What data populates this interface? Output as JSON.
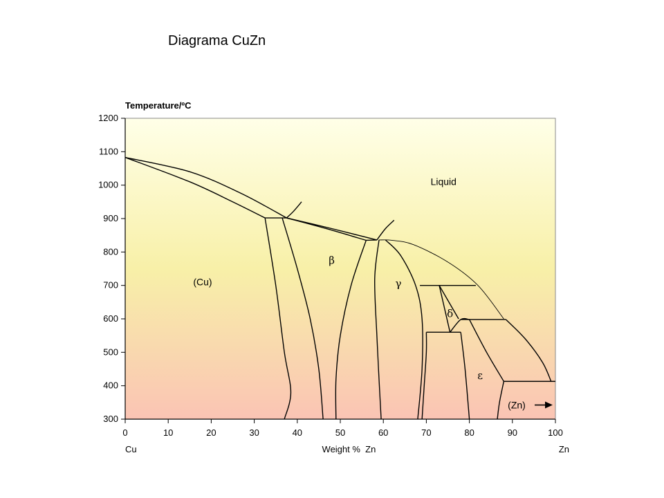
{
  "slide_title": "Diagrama CuZn",
  "chart_data": {
    "type": "phase_diagram",
    "y_axis_title": "Temperature/ºC",
    "x_axis_title": "Weight %  Zn",
    "x_left_label": "Cu",
    "x_right_label": "Zn",
    "xlim": [
      0,
      100
    ],
    "ylim": [
      300,
      1200
    ],
    "x_ticks": [
      0,
      10,
      20,
      30,
      40,
      50,
      60,
      70,
      80,
      90,
      100
    ],
    "y_ticks": [
      300,
      400,
      500,
      600,
      700,
      800,
      900,
      1000,
      1100,
      1200
    ],
    "background_gradient": [
      "#ffffe8",
      "#f8f0a8",
      "#fac4b4"
    ],
    "regions": [
      {
        "key": "liquid",
        "label": "Liquid",
        "x": 74,
        "y": 1000
      },
      {
        "key": "cu",
        "label": "(Cu)",
        "x": 18,
        "y": 700
      },
      {
        "key": "beta",
        "label": "β",
        "x": 48,
        "y": 765
      },
      {
        "key": "gamma",
        "label": "γ",
        "x": 63.5,
        "y": 695
      },
      {
        "key": "delta",
        "label": "δ",
        "x": 75.5,
        "y": 605
      },
      {
        "key": "epsilon",
        "label": "ε",
        "x": 82.5,
        "y": 420
      },
      {
        "key": "zn",
        "label": "(Zn)",
        "x": 91,
        "y": 332
      }
    ],
    "boundaries": [
      {
        "name": "liquidus-cu",
        "points": [
          [
            0,
            1083
          ],
          [
            15,
            1040
          ],
          [
            27,
            975
          ],
          [
            37.5,
            902
          ]
        ]
      },
      {
        "name": "solidus-cu",
        "points": [
          [
            0,
            1083
          ],
          [
            15,
            1010
          ],
          [
            25,
            950
          ],
          [
            32.5,
            902
          ]
        ]
      },
      {
        "name": "peritectic-beta-line",
        "points": [
          [
            32.5,
            902
          ],
          [
            37.5,
            902
          ]
        ]
      },
      {
        "name": "liquidus-beta-tail",
        "points": [
          [
            37.5,
            902
          ],
          [
            39,
            920
          ],
          [
            41,
            950
          ]
        ]
      },
      {
        "name": "liquidus-beta",
        "points": [
          [
            37.5,
            902
          ],
          [
            48,
            870
          ],
          [
            58.5,
            836
          ]
        ]
      },
      {
        "name": "solidus-beta",
        "points": [
          [
            37.5,
            902
          ],
          [
            47,
            869
          ],
          [
            56,
            835
          ]
        ]
      },
      {
        "name": "peritectic-gamma-line",
        "points": [
          [
            56,
            835
          ],
          [
            58.5,
            836
          ]
        ]
      },
      {
        "name": "liquidus-gamma-tail",
        "points": [
          [
            58.5,
            836
          ],
          [
            60.5,
            870
          ],
          [
            62.5,
            895
          ]
        ]
      },
      {
        "name": "liquidus-gamma",
        "points": [
          [
            59,
            836
          ],
          [
            62,
            835
          ],
          [
            67,
            822
          ],
          [
            75,
            770
          ],
          [
            82,
            700
          ],
          [
            88,
            600
          ]
        ]
      },
      {
        "name": "cu-solvus",
        "points": [
          [
            32.5,
            902
          ],
          [
            35,
            700
          ],
          [
            37,
            500
          ],
          [
            38.5,
            380
          ],
          [
            37,
            300
          ]
        ]
      },
      {
        "name": "beta-left-solvus",
        "points": [
          [
            36.5,
            902
          ],
          [
            40,
            750
          ],
          [
            43,
            600
          ],
          [
            45,
            450
          ],
          [
            46,
            300
          ]
        ]
      },
      {
        "name": "beta-right-solvus",
        "points": [
          [
            56,
            835
          ],
          [
            52.5,
            700
          ],
          [
            50,
            550
          ],
          [
            49,
            420
          ],
          [
            49,
            300
          ]
        ]
      },
      {
        "name": "gamma-left-solvus",
        "points": [
          [
            59,
            836
          ],
          [
            58,
            720
          ],
          [
            58.5,
            550
          ],
          [
            59,
            420
          ],
          [
            59.5,
            300
          ]
        ]
      },
      {
        "name": "gamma-right-solvus",
        "points": [
          [
            60.5,
            836
          ],
          [
            64,
            790
          ],
          [
            67.5,
            700
          ],
          [
            69,
            600
          ],
          [
            69,
            450
          ],
          [
            68,
            300
          ]
        ]
      },
      {
        "name": "eutectoid-700",
        "points": [
          [
            68.5,
            700
          ],
          [
            81.5,
            700
          ]
        ]
      },
      {
        "name": "delta-left",
        "points": [
          [
            73,
            700
          ],
          [
            75.5,
            560
          ]
        ]
      },
      {
        "name": "delta-right",
        "points": [
          [
            73,
            700
          ],
          [
            77.5,
            600
          ]
        ]
      },
      {
        "name": "delta-bottom",
        "points": [
          [
            75.5,
            560
          ],
          [
            78,
            598
          ],
          [
            80,
            598
          ]
        ]
      },
      {
        "name": "line-600",
        "points": [
          [
            78,
            598
          ],
          [
            88.5,
            598
          ]
        ]
      },
      {
        "name": "line-560",
        "points": [
          [
            70,
            560
          ],
          [
            78,
            560
          ]
        ]
      },
      {
        "name": "gamma-vertical-lower",
        "points": [
          [
            70,
            560
          ],
          [
            70,
            500
          ],
          [
            69.5,
            400
          ],
          [
            69,
            300
          ]
        ]
      },
      {
        "name": "epsilon-left",
        "points": [
          [
            78,
            560
          ],
          [
            79,
            450
          ],
          [
            80,
            300
          ]
        ]
      },
      {
        "name": "epsilon-right",
        "points": [
          [
            80,
            598
          ],
          [
            84,
            500
          ],
          [
            88,
            413
          ]
        ]
      },
      {
        "name": "liquidus-epsilon",
        "points": [
          [
            88.5,
            598
          ],
          [
            93,
            540
          ],
          [
            97,
            470
          ],
          [
            99,
            413
          ]
        ]
      },
      {
        "name": "eutectic-413",
        "points": [
          [
            88,
            413
          ],
          [
            100,
            413
          ]
        ]
      },
      {
        "name": "zn-solvus",
        "points": [
          [
            88,
            413
          ],
          [
            87,
            350
          ],
          [
            86.5,
            300
          ]
        ]
      }
    ]
  }
}
